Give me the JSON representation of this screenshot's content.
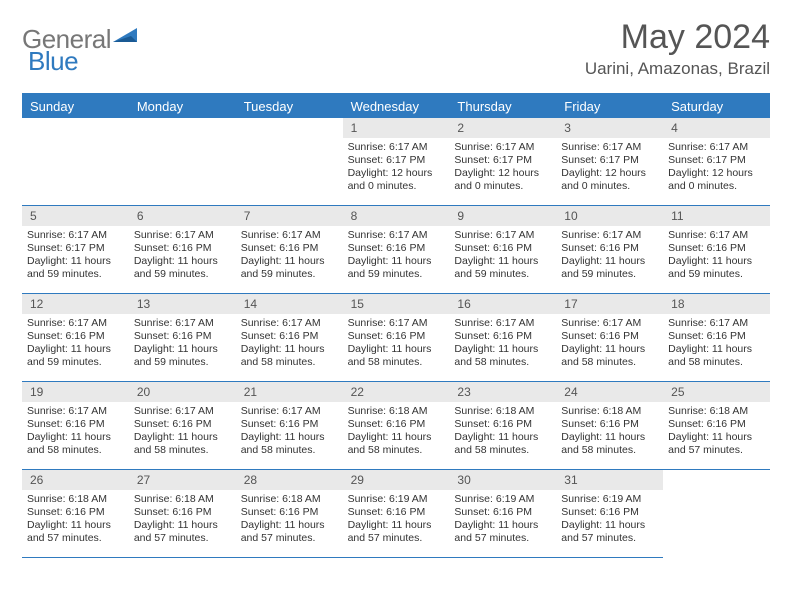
{
  "brand": {
    "part1": "General",
    "part2": "Blue"
  },
  "title": "May 2024",
  "subtitle": "Uarini, Amazonas, Brazil",
  "colors": {
    "primary": "#2f7abf",
    "header_bg": "#2f7abf",
    "daynum_bg": "#e9e9e9",
    "text": "#333333",
    "title_text": "#555555",
    "background": "#ffffff"
  },
  "layout": {
    "columns": 7,
    "rows": 5,
    "leading_blanks": 3
  },
  "weekdays": [
    "Sunday",
    "Monday",
    "Tuesday",
    "Wednesday",
    "Thursday",
    "Friday",
    "Saturday"
  ],
  "days": [
    {
      "n": 1,
      "sunrise": "6:17 AM",
      "sunset": "6:17 PM",
      "daylight": "12 hours and 0 minutes."
    },
    {
      "n": 2,
      "sunrise": "6:17 AM",
      "sunset": "6:17 PM",
      "daylight": "12 hours and 0 minutes."
    },
    {
      "n": 3,
      "sunrise": "6:17 AM",
      "sunset": "6:17 PM",
      "daylight": "12 hours and 0 minutes."
    },
    {
      "n": 4,
      "sunrise": "6:17 AM",
      "sunset": "6:17 PM",
      "daylight": "12 hours and 0 minutes."
    },
    {
      "n": 5,
      "sunrise": "6:17 AM",
      "sunset": "6:17 PM",
      "daylight": "11 hours and 59 minutes."
    },
    {
      "n": 6,
      "sunrise": "6:17 AM",
      "sunset": "6:16 PM",
      "daylight": "11 hours and 59 minutes."
    },
    {
      "n": 7,
      "sunrise": "6:17 AM",
      "sunset": "6:16 PM",
      "daylight": "11 hours and 59 minutes."
    },
    {
      "n": 8,
      "sunrise": "6:17 AM",
      "sunset": "6:16 PM",
      "daylight": "11 hours and 59 minutes."
    },
    {
      "n": 9,
      "sunrise": "6:17 AM",
      "sunset": "6:16 PM",
      "daylight": "11 hours and 59 minutes."
    },
    {
      "n": 10,
      "sunrise": "6:17 AM",
      "sunset": "6:16 PM",
      "daylight": "11 hours and 59 minutes."
    },
    {
      "n": 11,
      "sunrise": "6:17 AM",
      "sunset": "6:16 PM",
      "daylight": "11 hours and 59 minutes."
    },
    {
      "n": 12,
      "sunrise": "6:17 AM",
      "sunset": "6:16 PM",
      "daylight": "11 hours and 59 minutes."
    },
    {
      "n": 13,
      "sunrise": "6:17 AM",
      "sunset": "6:16 PM",
      "daylight": "11 hours and 59 minutes."
    },
    {
      "n": 14,
      "sunrise": "6:17 AM",
      "sunset": "6:16 PM",
      "daylight": "11 hours and 58 minutes."
    },
    {
      "n": 15,
      "sunrise": "6:17 AM",
      "sunset": "6:16 PM",
      "daylight": "11 hours and 58 minutes."
    },
    {
      "n": 16,
      "sunrise": "6:17 AM",
      "sunset": "6:16 PM",
      "daylight": "11 hours and 58 minutes."
    },
    {
      "n": 17,
      "sunrise": "6:17 AM",
      "sunset": "6:16 PM",
      "daylight": "11 hours and 58 minutes."
    },
    {
      "n": 18,
      "sunrise": "6:17 AM",
      "sunset": "6:16 PM",
      "daylight": "11 hours and 58 minutes."
    },
    {
      "n": 19,
      "sunrise": "6:17 AM",
      "sunset": "6:16 PM",
      "daylight": "11 hours and 58 minutes."
    },
    {
      "n": 20,
      "sunrise": "6:17 AM",
      "sunset": "6:16 PM",
      "daylight": "11 hours and 58 minutes."
    },
    {
      "n": 21,
      "sunrise": "6:17 AM",
      "sunset": "6:16 PM",
      "daylight": "11 hours and 58 minutes."
    },
    {
      "n": 22,
      "sunrise": "6:18 AM",
      "sunset": "6:16 PM",
      "daylight": "11 hours and 58 minutes."
    },
    {
      "n": 23,
      "sunrise": "6:18 AM",
      "sunset": "6:16 PM",
      "daylight": "11 hours and 58 minutes."
    },
    {
      "n": 24,
      "sunrise": "6:18 AM",
      "sunset": "6:16 PM",
      "daylight": "11 hours and 58 minutes."
    },
    {
      "n": 25,
      "sunrise": "6:18 AM",
      "sunset": "6:16 PM",
      "daylight": "11 hours and 57 minutes."
    },
    {
      "n": 26,
      "sunrise": "6:18 AM",
      "sunset": "6:16 PM",
      "daylight": "11 hours and 57 minutes."
    },
    {
      "n": 27,
      "sunrise": "6:18 AM",
      "sunset": "6:16 PM",
      "daylight": "11 hours and 57 minutes."
    },
    {
      "n": 28,
      "sunrise": "6:18 AM",
      "sunset": "6:16 PM",
      "daylight": "11 hours and 57 minutes."
    },
    {
      "n": 29,
      "sunrise": "6:19 AM",
      "sunset": "6:16 PM",
      "daylight": "11 hours and 57 minutes."
    },
    {
      "n": 30,
      "sunrise": "6:19 AM",
      "sunset": "6:16 PM",
      "daylight": "11 hours and 57 minutes."
    },
    {
      "n": 31,
      "sunrise": "6:19 AM",
      "sunset": "6:16 PM",
      "daylight": "11 hours and 57 minutes."
    }
  ],
  "labels": {
    "sunrise": "Sunrise:",
    "sunset": "Sunset:",
    "daylight": "Daylight:"
  }
}
